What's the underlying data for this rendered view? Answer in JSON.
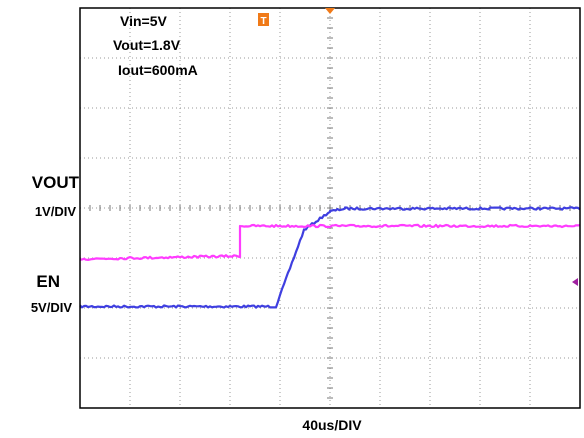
{
  "chart_data": {
    "type": "line",
    "title": "",
    "annotations": [
      "Vin=5V",
      "Vout=1.8V",
      "Iout=600mA"
    ],
    "xlabel": "40us/DIV",
    "grid": true,
    "divisions": {
      "x": 10,
      "y": 8
    },
    "x_range_div": [
      0,
      10
    ],
    "y_range_div": [
      0,
      8
    ],
    "trigger_marker": "T",
    "channels": [
      {
        "name": "VOUT",
        "scale": "1V/DIV",
        "color": "#3f3fe0",
        "points_div": [
          [
            0,
            2.03
          ],
          [
            3.92,
            2.03
          ],
          [
            4.48,
            3.56
          ],
          [
            5.0,
            3.93
          ],
          [
            5.3,
            3.99
          ],
          [
            10,
            3.99
          ]
        ]
      },
      {
        "name": "EN",
        "scale": "5V/DIV",
        "color": "#ff3cff",
        "points_div": [
          [
            0,
            2.98
          ],
          [
            3.2,
            3.04
          ],
          [
            3.2,
            3.64
          ],
          [
            10,
            3.64
          ]
        ]
      }
    ]
  }
}
